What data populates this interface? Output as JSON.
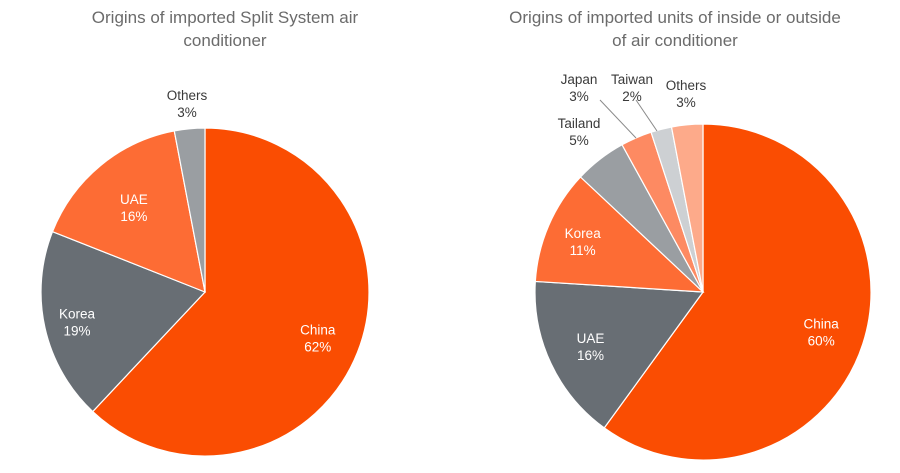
{
  "chart_data": [
    {
      "type": "pie",
      "title_lines": [
        "Origins of imported Split System air",
        "conditioner"
      ],
      "slices": [
        {
          "label": "China",
          "value": 62,
          "value_label": "62%",
          "color": "#fa4d02"
        },
        {
          "label": "Korea",
          "value": 19,
          "value_label": "19%",
          "color": "#686e74"
        },
        {
          "label": "UAE",
          "value": 16,
          "value_label": "16%",
          "color": "#fd6c34"
        },
        {
          "label": "Others",
          "value": 3,
          "value_label": "3%",
          "color": "#9a9ea2"
        }
      ]
    },
    {
      "type": "pie",
      "title_lines": [
        "Origins of imported units of inside or outside",
        "of air conditioner"
      ],
      "slices": [
        {
          "label": "China",
          "value": 60,
          "value_label": "60%",
          "color": "#fa4d02"
        },
        {
          "label": "UAE",
          "value": 16,
          "value_label": "16%",
          "color": "#686e74"
        },
        {
          "label": "Korea",
          "value": 11,
          "value_label": "11%",
          "color": "#fd6c34"
        },
        {
          "label": "Tailand",
          "value": 5,
          "value_label": "5%",
          "color": "#9a9ea2"
        },
        {
          "label": "Japan",
          "value": 3,
          "value_label": "3%",
          "color": "#fd8a62"
        },
        {
          "label": "Taiwan",
          "value": 2,
          "value_label": "2%",
          "color": "#cdd0d3"
        },
        {
          "label": "Others",
          "value": 3,
          "value_label": "3%",
          "color": "#fdaa8a"
        }
      ]
    }
  ]
}
